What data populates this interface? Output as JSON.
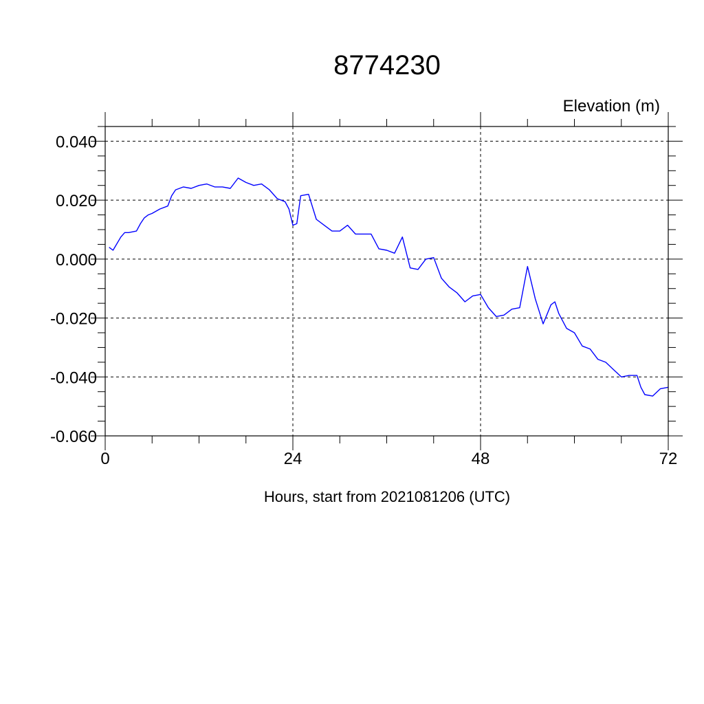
{
  "chart_data": {
    "type": "line",
    "title": "8774230",
    "ylabel": "Elevation (m)",
    "xlabel": "Hours, start from 2021081206 (UTC)",
    "xlim": [
      0,
      72
    ],
    "ylim": [
      -0.06,
      0.045
    ],
    "x_ticks": [
      0,
      24,
      48,
      72
    ],
    "x_tick_labels": [
      "0",
      "24",
      "48",
      "72"
    ],
    "y_ticks": [
      0.04,
      0.02,
      0.0,
      -0.02,
      -0.04,
      -0.06
    ],
    "y_tick_labels": [
      "0.040",
      "0.020",
      "0.000",
      "-0.020",
      "-0.040",
      "-0.060"
    ],
    "grid": true,
    "line_color": "#0000ff",
    "series": [
      {
        "x": [
          0.5,
          1,
          2,
          2.5,
          3,
          4,
          4.5,
          5,
          5.5,
          6,
          7,
          8,
          8.5,
          9,
          9.5,
          10,
          11,
          12,
          13,
          14,
          15,
          16,
          17,
          18,
          19,
          20,
          21,
          22,
          23,
          23.5,
          24,
          24.5,
          25,
          26,
          27,
          28,
          29,
          30,
          31,
          32,
          33,
          34,
          35,
          36,
          37,
          38,
          39,
          40,
          41,
          42,
          43,
          44,
          45,
          46,
          47,
          48,
          49,
          50,
          51,
          52,
          53,
          54,
          55,
          56,
          57,
          57.5,
          58,
          59,
          60,
          61,
          62,
          63,
          64,
          65,
          66,
          67,
          68,
          68.5,
          69,
          70,
          71,
          72
        ],
        "y": [
          0.004,
          0.003,
          0.0075,
          0.009,
          0.009,
          0.0095,
          0.012,
          0.014,
          0.015,
          0.0155,
          0.017,
          0.018,
          0.0215,
          0.0235,
          0.024,
          0.0245,
          0.024,
          0.025,
          0.0255,
          0.0245,
          0.0245,
          0.024,
          0.0275,
          0.026,
          0.025,
          0.0255,
          0.0235,
          0.0205,
          0.0195,
          0.017,
          0.0115,
          0.012,
          0.0215,
          0.022,
          0.0135,
          0.0115,
          0.0095,
          0.0095,
          0.0115,
          0.0085,
          0.0085,
          0.0085,
          0.0035,
          0.003,
          0.002,
          0.0075,
          -0.003,
          -0.0035,
          0.0,
          0.0005,
          -0.0065,
          -0.0095,
          -0.0115,
          -0.0145,
          -0.0125,
          -0.012,
          -0.0165,
          -0.0195,
          -0.019,
          -0.017,
          -0.0165,
          -0.0025,
          -0.0135,
          -0.022,
          -0.0155,
          -0.0145,
          -0.0185,
          -0.0235,
          -0.025,
          -0.0295,
          -0.0305,
          -0.034,
          -0.035,
          -0.0375,
          -0.04,
          -0.0395,
          -0.0395,
          -0.0435,
          -0.046,
          -0.0465,
          -0.044,
          -0.0435
        ]
      }
    ]
  }
}
